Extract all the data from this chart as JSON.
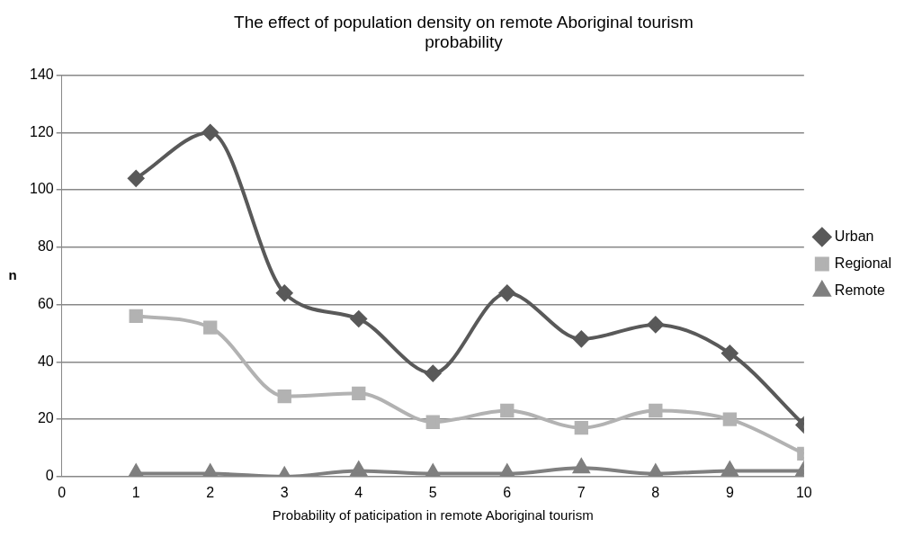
{
  "chart_data": {
    "type": "line",
    "title": [
      "The effect of population density on remote Aboriginal tourism",
      "probability"
    ],
    "xlabel": "Probability of paticipation in remote Aboriginal tourism",
    "ylabel": "n",
    "x": [
      1,
      2,
      3,
      4,
      5,
      6,
      7,
      8,
      9,
      10
    ],
    "series": [
      {
        "name": "Urban",
        "color": "#595959",
        "marker": "diamond",
        "values": [
          104,
          120,
          64,
          55,
          36,
          64,
          48,
          53,
          43,
          18
        ]
      },
      {
        "name": "Regional",
        "color": "#b2b2b2",
        "marker": "square",
        "values": [
          56,
          52,
          28,
          29,
          19,
          23,
          17,
          23,
          20,
          8
        ]
      },
      {
        "name": "Remote",
        "color": "#7f7f7f",
        "marker": "triangle",
        "values": [
          1,
          1,
          0,
          2,
          1,
          1,
          3,
          1,
          2,
          2
        ]
      }
    ],
    "xlim": [
      0,
      10
    ],
    "xticks": [
      0,
      1,
      2,
      3,
      4,
      5,
      6,
      7,
      8,
      9,
      10
    ],
    "ylim": [
      0,
      140
    ],
    "yticks": [
      0,
      20,
      40,
      60,
      80,
      100,
      120,
      140
    ],
    "grid": "y",
    "legend": "right"
  }
}
